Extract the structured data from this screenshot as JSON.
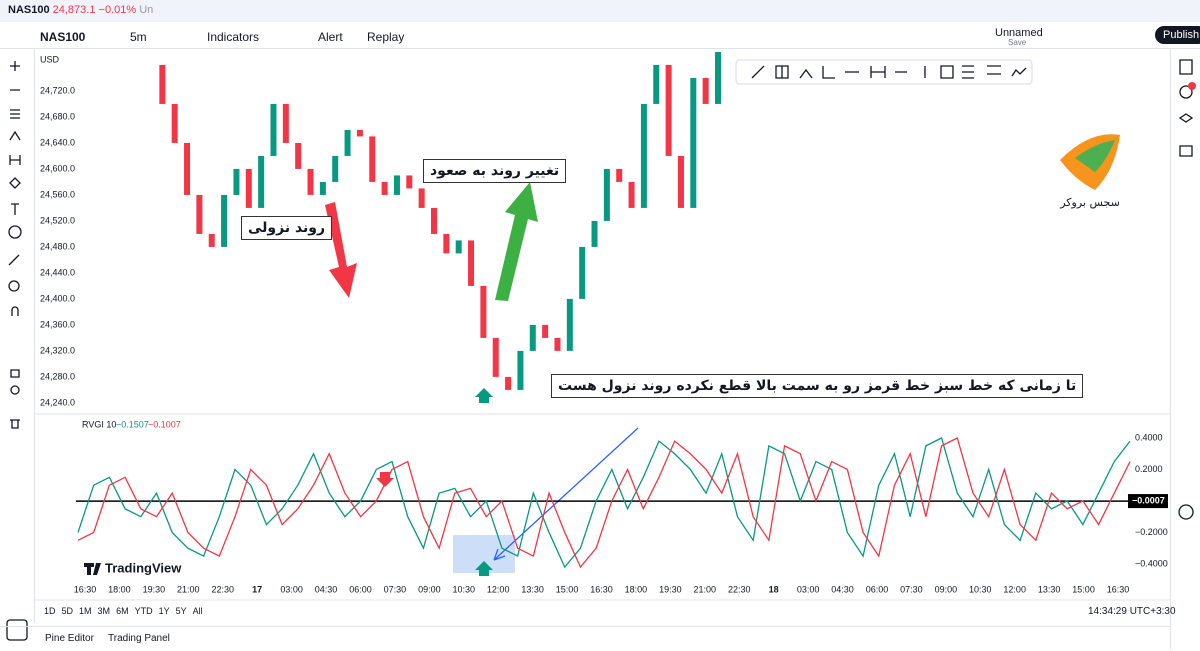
{
  "tab": {
    "symbol": "NAS100",
    "price": "24,873.1",
    "change": "−0.01%",
    "more": "Un"
  },
  "toolbar": {
    "symbol": "NAS100",
    "interval": "5m",
    "indicators": "Indicators",
    "alert": "Alert",
    "replay": "Replay",
    "layout_name": "Unnamed",
    "layout_status": "Save",
    "publish": "Publish"
  },
  "chart_data": [
    {
      "type": "candlestick",
      "currency": "USD",
      "values": [
        24760,
        24700,
        24640,
        24560,
        24500,
        24480,
        24560,
        24600,
        24540,
        24620,
        24700,
        24640,
        24600,
        24560,
        24580,
        24620,
        24660,
        24650,
        24580,
        24560,
        24590,
        24570,
        24540,
        24500,
        24470,
        24490,
        24420,
        24340,
        24280,
        24260,
        24320,
        24360,
        24340,
        24320,
        24400,
        24480,
        24520,
        24600,
        24580,
        24540,
        24700,
        24760,
        24620,
        24540,
        24740,
        24700,
        24780
      ],
      "up_color": "#089981",
      "down_color": "#f23645",
      "ylim": [
        24226,
        24783
      ],
      "yticks": [
        {
          "value": 24720,
          "label": "24,720.0"
        },
        {
          "value": 24680,
          "label": "24,680.0"
        },
        {
          "value": 24640,
          "label": "24,640.0"
        },
        {
          "value": 24600,
          "label": "24,600.0"
        },
        {
          "value": 24560,
          "label": "24,560.0"
        },
        {
          "value": 24520,
          "label": "24,520.0"
        },
        {
          "value": 24480,
          "label": "24,480.0"
        },
        {
          "value": 24440,
          "label": "24,440.0"
        },
        {
          "value": 24400,
          "label": "24,400.0"
        },
        {
          "value": 24360,
          "label": "24,360.0"
        },
        {
          "value": 24320,
          "label": "24,320.0"
        },
        {
          "value": 24280,
          "label": "24,280.0"
        },
        {
          "value": 24240,
          "label": "24,240.0"
        }
      ]
    },
    {
      "type": "line",
      "title": "RVGI 10",
      "readout": [
        "−0.1507",
        "−0.1007"
      ],
      "series": [
        {
          "color": "#089981",
          "values": [
            -0.2,
            0.1,
            0.15,
            -0.05,
            -0.1,
            0.05,
            -0.2,
            -0.3,
            -0.35,
            -0.1,
            0.2,
            0.1,
            -0.15,
            -0.05,
            0.1,
            0.3,
            0.05,
            -0.1,
            0.0,
            0.2,
            0.25,
            -0.1,
            -0.3,
            0.05,
            0.08,
            -0.1,
            0.0,
            -0.3,
            -0.35,
            0.05,
            -0.2,
            -0.42,
            -0.3,
            0.0,
            0.2,
            -0.05,
            0.15,
            0.38,
            0.3,
            0.2,
            0.05,
            0.3,
            -0.1,
            -0.25,
            0.35,
            0.3,
            0.0,
            0.25,
            0.2,
            -0.2,
            -0.35,
            0.1,
            0.3,
            -0.1,
            0.35,
            0.4,
            0.05,
            -0.1,
            0.2,
            -0.15,
            -0.25,
            0.05,
            -0.05,
            0.0,
            -0.15,
            0.05,
            0.25,
            0.38
          ]
        },
        {
          "color": "#f23645",
          "values": [
            -0.25,
            -0.2,
            0.1,
            0.15,
            -0.05,
            -0.1,
            0.05,
            -0.2,
            -0.3,
            -0.35,
            -0.1,
            0.2,
            0.1,
            -0.15,
            -0.05,
            0.1,
            0.3,
            0.05,
            -0.1,
            0.0,
            0.2,
            0.25,
            -0.1,
            -0.3,
            0.05,
            0.08,
            -0.1,
            0.0,
            -0.3,
            -0.35,
            0.05,
            -0.2,
            -0.42,
            -0.3,
            0.0,
            0.2,
            -0.05,
            0.15,
            0.38,
            0.3,
            0.2,
            0.05,
            0.3,
            -0.1,
            -0.25,
            0.35,
            0.3,
            0.0,
            0.25,
            0.2,
            -0.2,
            -0.35,
            0.1,
            0.3,
            -0.1,
            0.35,
            0.4,
            0.05,
            -0.1,
            0.2,
            -0.15,
            -0.25,
            0.05,
            -0.05,
            0.0,
            -0.15,
            0.05,
            0.25
          ]
        }
      ],
      "ylim": [
        -0.502,
        0.546
      ],
      "yticks": [
        {
          "value": 0.4,
          "label": "0.4000"
        },
        {
          "value": 0.2,
          "label": "0.2000"
        },
        {
          "value": -0.2,
          "label": "−0.2000"
        },
        {
          "value": -0.4,
          "label": "−0.4000"
        }
      ],
      "last_value": {
        "value": -0.0007,
        "label": "−0.0007"
      }
    }
  ],
  "time_axis": [
    "16:30",
    "18:00",
    "19:30",
    "21:00",
    "22:30",
    "17",
    "03:00",
    "04:30",
    "06:00",
    "07:30",
    "09:00",
    "10:30",
    "12:00",
    "13:30",
    "15:00",
    "16:30",
    "18:00",
    "19:30",
    "21:00",
    "22:30",
    "18",
    "03:00",
    "04:30",
    "06:00",
    "07:30",
    "09:00",
    "10:30",
    "12:00",
    "13:30",
    "15:00",
    "16:30"
  ],
  "annotations": {
    "downtrend": "روند نزولی",
    "reversal": "تغییر روند به صعود",
    "note": "تا زمانی که خط سبز خط قرمز رو به سمت بالا قطع نکرده روند نزول هست",
    "brand": "سجس بروکر"
  },
  "watermark": "TradingView",
  "ranges": [
    "1D",
    "5D",
    "1M",
    "3M",
    "6M",
    "YTD",
    "1Y",
    "5Y",
    "All"
  ],
  "clock": "14:34:29 UTC+3:30",
  "footer": {
    "pine": "Pine Editor",
    "panel": "Trading Panel"
  }
}
